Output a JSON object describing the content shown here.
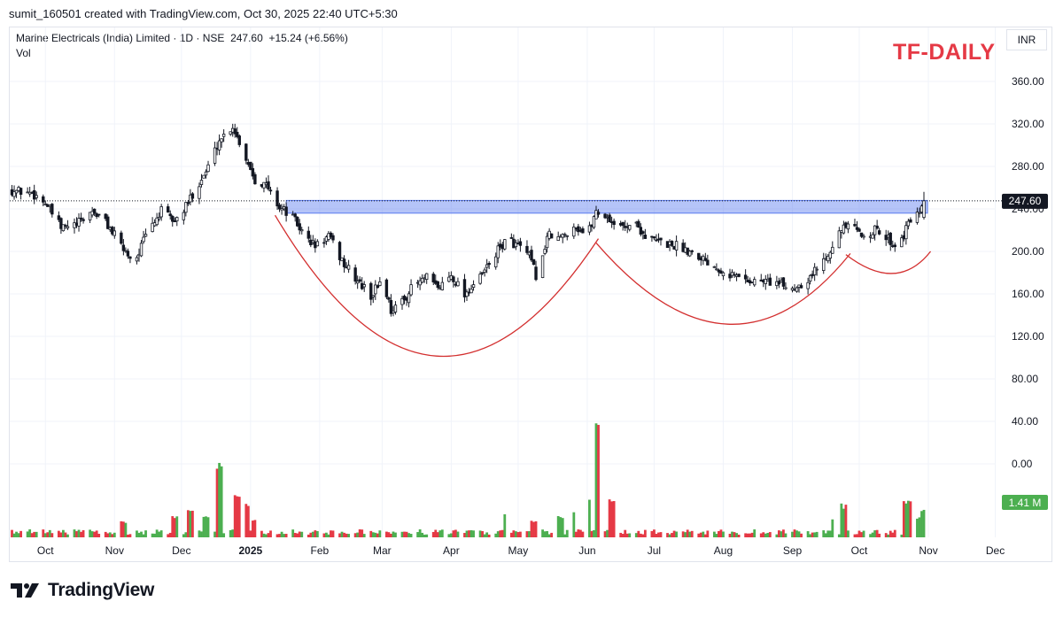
{
  "header": {
    "credit": "sumit_160501 created with TradingView.com, Oct 30, 2025 22:40 UTC+5:30",
    "symbol_line": "Marine Electricals (India) Limited · 1D · NSE",
    "last_price": "247.60",
    "change": "+15.24 (+6.56%)",
    "vol_label": "Vol",
    "currency": "INR",
    "tag": "TF-DAILY"
  },
  "footer": {
    "brand": "TradingView",
    "logo_icon": "tradingview-logo-icon"
  },
  "colors": {
    "up": "#26a69a",
    "down": "#ef5350",
    "candle": "#131722",
    "vol_up": "#4caf50",
    "vol_down": "#e53945",
    "zone": "#5b7cf0",
    "arc": "#d32f2f",
    "price_badge": "#131722",
    "vol_badge": "#4caf50"
  },
  "chart_data": {
    "type": "candlestick",
    "y_ticks": [
      "360.00",
      "320.00",
      "280.00",
      "240.00",
      "200.00",
      "160.00",
      "120.00",
      "80.00",
      "40.00",
      "0.00"
    ],
    "x_ticks": [
      "Oct",
      "Nov",
      "Dec",
      "2025",
      "Feb",
      "Mar",
      "Apr",
      "May",
      "Jun",
      "Jul",
      "Aug",
      "Sep",
      "Oct",
      "Nov",
      "Dec"
    ],
    "last_price_label": "247.60",
    "volume_label": "1.41 M",
    "ylim": [
      0,
      370
    ],
    "resistance_zone": [
      236,
      248
    ],
    "price_path": [
      [
        "2024-09-15",
        258
      ],
      [
        "2024-09-25",
        255
      ],
      [
        "2024-10-01",
        246
      ],
      [
        "2024-10-08",
        222
      ],
      [
        "2024-10-15",
        225
      ],
      [
        "2024-10-22",
        238
      ],
      [
        "2024-10-28",
        228
      ],
      [
        "2024-11-04",
        205
      ],
      [
        "2024-11-10",
        190
      ],
      [
        "2024-11-15",
        215
      ],
      [
        "2024-11-22",
        238
      ],
      [
        "2024-11-28",
        228
      ],
      [
        "2024-12-03",
        242
      ],
      [
        "2024-12-08",
        262
      ],
      [
        "2024-12-12",
        275
      ],
      [
        "2024-12-18",
        305
      ],
      [
        "2024-12-24",
        318
      ],
      [
        "2024-12-28",
        298
      ],
      [
        "2025-01-03",
        268
      ],
      [
        "2025-01-08",
        262
      ],
      [
        "2025-01-14",
        242
      ],
      [
        "2025-01-20",
        232
      ],
      [
        "2025-01-25",
        215
      ],
      [
        "2025-01-30",
        205
      ],
      [
        "2025-02-05",
        214
      ],
      [
        "2025-02-12",
        188
      ],
      [
        "2025-02-18",
        172
      ],
      [
        "2025-02-24",
        158
      ],
      [
        "2025-03-01",
        175
      ],
      [
        "2025-03-05",
        145
      ],
      [
        "2025-03-10",
        152
      ],
      [
        "2025-03-15",
        168
      ],
      [
        "2025-03-21",
        175
      ],
      [
        "2025-03-26",
        165
      ],
      [
        "2025-04-01",
        178
      ],
      [
        "2025-04-07",
        160
      ],
      [
        "2025-04-14",
        175
      ],
      [
        "2025-04-20",
        195
      ],
      [
        "2025-04-26",
        212
      ],
      [
        "2025-05-01",
        205
      ],
      [
        "2025-05-06",
        195
      ],
      [
        "2025-05-10",
        172
      ],
      [
        "2025-05-14",
        215
      ],
      [
        "2025-05-20",
        212
      ],
      [
        "2025-05-26",
        225
      ],
      [
        "2025-06-01",
        215
      ],
      [
        "2025-06-05",
        238
      ],
      [
        "2025-06-10",
        232
      ],
      [
        "2025-06-16",
        222
      ],
      [
        "2025-06-22",
        228
      ],
      [
        "2025-06-28",
        212
      ],
      [
        "2025-07-05",
        208
      ],
      [
        "2025-07-12",
        205
      ],
      [
        "2025-07-20",
        198
      ],
      [
        "2025-07-27",
        188
      ],
      [
        "2025-08-05",
        178
      ],
      [
        "2025-08-14",
        172
      ],
      [
        "2025-08-22",
        172
      ],
      [
        "2025-09-01",
        165
      ],
      [
        "2025-09-08",
        174
      ],
      [
        "2025-09-15",
        192
      ],
      [
        "2025-09-21",
        215
      ],
      [
        "2025-09-26",
        225
      ],
      [
        "2025-10-02",
        215
      ],
      [
        "2025-10-08",
        220
      ],
      [
        "2025-10-14",
        212
      ],
      [
        "2025-10-18",
        204
      ],
      [
        "2025-10-22",
        220
      ],
      [
        "2025-10-26",
        240
      ],
      [
        "2025-10-28",
        232
      ],
      [
        "2025-10-30",
        247.6
      ]
    ],
    "volume_spikes": [
      [
        "2024-11-05",
        18
      ],
      [
        "2024-11-28",
        22
      ],
      [
        "2024-12-05",
        28
      ],
      [
        "2024-12-12",
        24
      ],
      [
        "2024-12-18",
        80
      ],
      [
        "2024-12-26",
        50
      ],
      [
        "2024-12-30",
        35
      ],
      [
        "2025-01-03",
        18
      ],
      [
        "2025-04-26",
        25
      ],
      [
        "2025-05-08",
        18
      ],
      [
        "2025-05-20",
        22
      ],
      [
        "2025-05-25",
        30
      ],
      [
        "2025-06-01",
        45
      ],
      [
        "2025-06-06",
        120
      ],
      [
        "2025-06-12",
        42
      ],
      [
        "2025-09-20",
        22
      ],
      [
        "2025-09-24",
        35
      ],
      [
        "2025-10-22",
        38
      ],
      [
        "2025-10-25",
        40
      ],
      [
        "2025-10-28",
        22
      ],
      [
        "2025-10-30",
        30
      ]
    ]
  }
}
